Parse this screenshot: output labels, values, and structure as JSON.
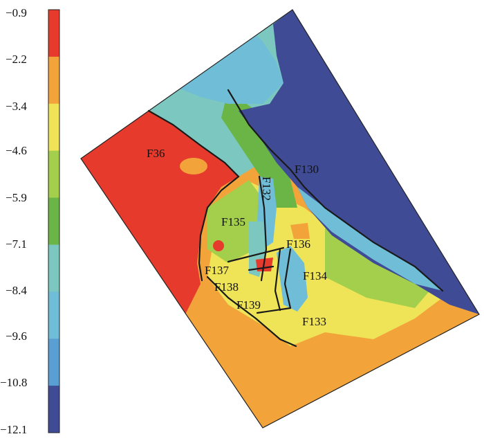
{
  "colorbar": {
    "ticks": [
      "−0.9",
      "−2.2",
      "−3.4",
      "−4.6",
      "−5.9",
      "−7.1",
      "−8.4",
      "−9.6",
      "−10.8",
      "−12.1"
    ],
    "bands": [
      {
        "color": "#e63a2c"
      },
      {
        "color": "#f2a33a"
      },
      {
        "color": "#efe357"
      },
      {
        "color": "#a3cf4c"
      },
      {
        "color": "#6ab545"
      },
      {
        "color": "#7cc8c0"
      },
      {
        "color": "#6fbdd6"
      },
      {
        "color": "#5a9fd3"
      },
      {
        "color": "#3f4b95"
      }
    ]
  },
  "faults": {
    "f36": "F36",
    "f130": "F130",
    "f132": "F132",
    "f135": "F135",
    "f136": "F136",
    "f137": "F137",
    "f134": "F134",
    "f138": "F138",
    "f139": "F139",
    "f133": "F133"
  },
  "colors": {
    "red": "#e63a2c",
    "orange": "#f2a33a",
    "yellow": "#efe357",
    "lightgreen": "#a3cf4c",
    "green": "#6ab545",
    "teal": "#7cc8c0",
    "lightblue": "#6fbdd6",
    "blue": "#5a9fd3",
    "navy": "#3f4b95"
  }
}
